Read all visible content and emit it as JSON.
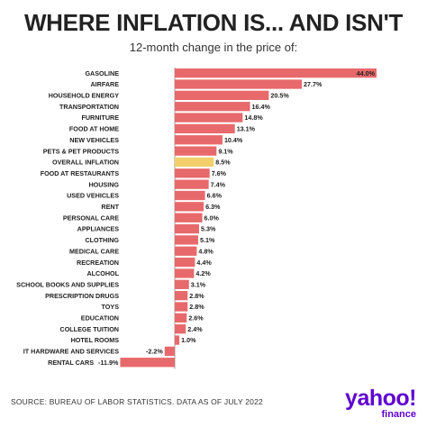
{
  "header": {
    "title": "WHERE INFLATION IS... AND ISN'T",
    "subtitle": "12-month change in the price of:"
  },
  "footer": {
    "source": "SOURCE: BUREAU OF LABOR STATISTICS. DATA AS OF JULY 2022"
  },
  "logo": {
    "brand": "yahoo!",
    "product": "finance"
  },
  "colors": {
    "bar": "#e8696b",
    "highlight": "#f2cf6a",
    "axis": "#888888",
    "brand": "#5f01d1"
  },
  "chart_data": {
    "type": "bar",
    "orientation": "horizontal",
    "title": "WHERE INFLATION IS... AND ISN'T",
    "subtitle": "12-month change in the price of:",
    "highlight_category": "OVERALL INFLATION",
    "categories": [
      "GASOLINE",
      "AIRFARE",
      "HOUSEHOLD ENERGY",
      "TRANSPORTATION",
      "FURNITURE",
      "FOOD AT HOME",
      "NEW VEHICLES",
      "PETS & PET PRODUCTS",
      "OVERALL INFLATION",
      "FOOD AT RESTAURANTS",
      "HOUSING",
      "USED VEHICLES",
      "RENT",
      "PERSONAL CARE",
      "APPLIANCES",
      "CLOTHING",
      "MEDICAL CARE",
      "RECREATION",
      "ALCOHOL",
      "SCHOOL BOOKS AND SUPPLIES",
      "PRESCRIPTION DRUGS",
      "TOYS",
      "EDUCATION",
      "COLLEGE TUITION",
      "HOTEL ROOMS",
      "IT HARDWARE AND SERVICES",
      "RENTAL CARS"
    ],
    "values": [
      44.0,
      27.7,
      20.5,
      16.4,
      14.8,
      13.1,
      10.4,
      9.1,
      8.5,
      7.6,
      7.4,
      6.6,
      6.3,
      6.0,
      5.3,
      5.1,
      4.8,
      4.4,
      4.2,
      3.1,
      2.8,
      2.8,
      2.6,
      2.4,
      1.0,
      -2.2,
      -11.9
    ],
    "value_labels": [
      "44.0%",
      "27.7%",
      "20.5%",
      "16.4%",
      "14.8%",
      "13.1%",
      "10.4%",
      "9.1%",
      "8.5%",
      "7.6%",
      "7.4%",
      "6.6%",
      "6.3%",
      "6.0%",
      "5.3%",
      "5.1%",
      "4.8%",
      "4.4%",
      "4.2%",
      "3.1%",
      "2.8%",
      "2.8%",
      "2.6%",
      "2.4%",
      "1.0%",
      "-2.2%",
      "-11.9%"
    ],
    "xlim": [
      -12,
      44
    ],
    "grid": false,
    "legend": false
  }
}
